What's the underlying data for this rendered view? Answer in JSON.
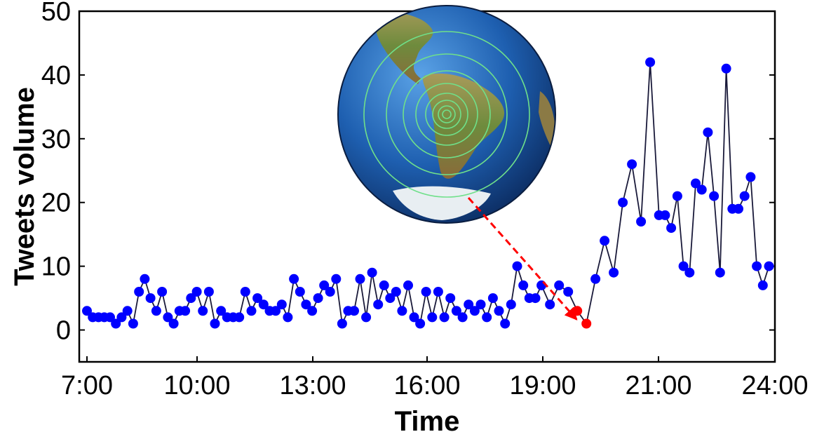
{
  "chart_data": {
    "type": "line",
    "xlabel": "Time",
    "ylabel": "Tweets volume",
    "xlim": [
      7,
      24
    ],
    "ylim": [
      -5,
      50
    ],
    "x_ticks": [
      {
        "value": 7,
        "label": "7:00"
      },
      {
        "value": 10,
        "label": "10:00"
      },
      {
        "value": 13,
        "label": "13:00"
      },
      {
        "value": 16,
        "label": "16:00"
      },
      {
        "value": 19,
        "label": "19:00"
      },
      {
        "value": 21,
        "label": "21:00"
      },
      {
        "value": 24,
        "label": "24:00"
      }
    ],
    "y_ticks": [
      {
        "value": 0,
        "label": "0"
      },
      {
        "value": 10,
        "label": "10"
      },
      {
        "value": 20,
        "label": "20"
      },
      {
        "value": 30,
        "label": "30"
      },
      {
        "value": 40,
        "label": "40"
      },
      {
        "value": 50,
        "label": "50"
      }
    ],
    "grid": false,
    "line_color": "#1a1a3a",
    "marker_color": "#0000ff",
    "highlight_color": "#ff0000",
    "series": [
      {
        "values": [
          3,
          2,
          2,
          2,
          2,
          1,
          2,
          3,
          1,
          6,
          8,
          5,
          3,
          6,
          2,
          1,
          3,
          3,
          5,
          6,
          3,
          6,
          1,
          3,
          2,
          2,
          2,
          6,
          3,
          5,
          4,
          3,
          3,
          4,
          2,
          8,
          6,
          4,
          3,
          5,
          7,
          6,
          8,
          1,
          3,
          3,
          8,
          2,
          9,
          4,
          7,
          5,
          6,
          3,
          7,
          2,
          1,
          6,
          2,
          6,
          2,
          5,
          3,
          2,
          4,
          3,
          4,
          2,
          5,
          3,
          1,
          4,
          10,
          7,
          5,
          5,
          7,
          4,
          7,
          6,
          3,
          1,
          8,
          14,
          9,
          20,
          26,
          17,
          42,
          18,
          18,
          16,
          21,
          10,
          9,
          23,
          22,
          31,
          21,
          9,
          41,
          19,
          19,
          21,
          24,
          10,
          7,
          10
        ],
        "x_start": 7.0,
        "x_step": 0.15745,
        "highlight_indices": [
          80,
          81
        ]
      }
    ],
    "annotations": [
      {
        "type": "inset-image",
        "description": "globe-earthquake-epicenter-icon"
      },
      {
        "type": "dashed-arrow",
        "color": "#ff0000",
        "points_to_index": 81
      }
    ]
  }
}
